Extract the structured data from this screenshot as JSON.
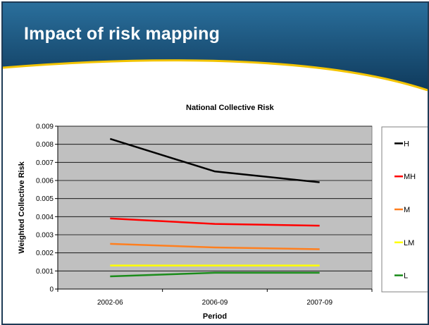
{
  "slide": {
    "title": "Impact of risk mapping",
    "colors": {
      "header_blue": "#1d5a86",
      "header_dark": "#0f3a5c",
      "accent_gold": "#f3c400"
    }
  },
  "chart_data": {
    "type": "line",
    "title": "National Collective Risk",
    "xlabel": "Period",
    "ylabel": "Weighted Collective Risk",
    "categories": [
      "2002-06",
      "2006-09",
      "2007-09"
    ],
    "ylim": [
      0,
      0.009
    ],
    "yticks": [
      "0",
      "0.001",
      "0.002",
      "0.003",
      "0.004",
      "0.005",
      "0.006",
      "0.007",
      "0.008",
      "0.009"
    ],
    "grid": true,
    "plot_background": "#c0c0c0",
    "legend_position": "right",
    "series": [
      {
        "name": "H",
        "values": [
          0.0083,
          0.0065,
          0.0059
        ],
        "color": "#000000"
      },
      {
        "name": "MH",
        "values": [
          0.0039,
          0.0036,
          0.0035
        ],
        "color": "#ff0000"
      },
      {
        "name": "M",
        "values": [
          0.0025,
          0.0023,
          0.0022
        ],
        "color": "#ff7f1f"
      },
      {
        "name": "LM",
        "values": [
          0.0013,
          0.0013,
          0.0013
        ],
        "color": "#ffff00"
      },
      {
        "name": "L",
        "values": [
          0.0007,
          0.0009,
          0.0009
        ],
        "color": "#1a8c1a"
      }
    ]
  }
}
